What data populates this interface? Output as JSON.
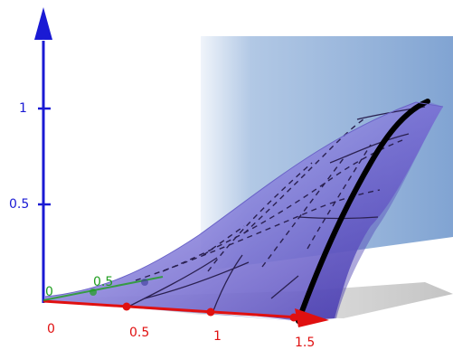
{
  "axes": {
    "z": {
      "color": "#1a1ad4",
      "tick_labels": [
        "1",
        "0.5"
      ]
    },
    "x": {
      "color": "#e01010",
      "tick_labels": [
        "0",
        "0.5",
        "1",
        "1.5"
      ]
    },
    "y": {
      "color": "#1f9e1f",
      "tick_labels": [
        "0",
        "0.5"
      ]
    }
  },
  "colors": {
    "plane_fill": "#7ea3d2",
    "surface_fill": "#5b4fc2",
    "surface_highlight": "#b9b8ef",
    "shadow": "#cfcfcf",
    "edge_curve": "#000000",
    "mesh": "#2a2050"
  }
}
